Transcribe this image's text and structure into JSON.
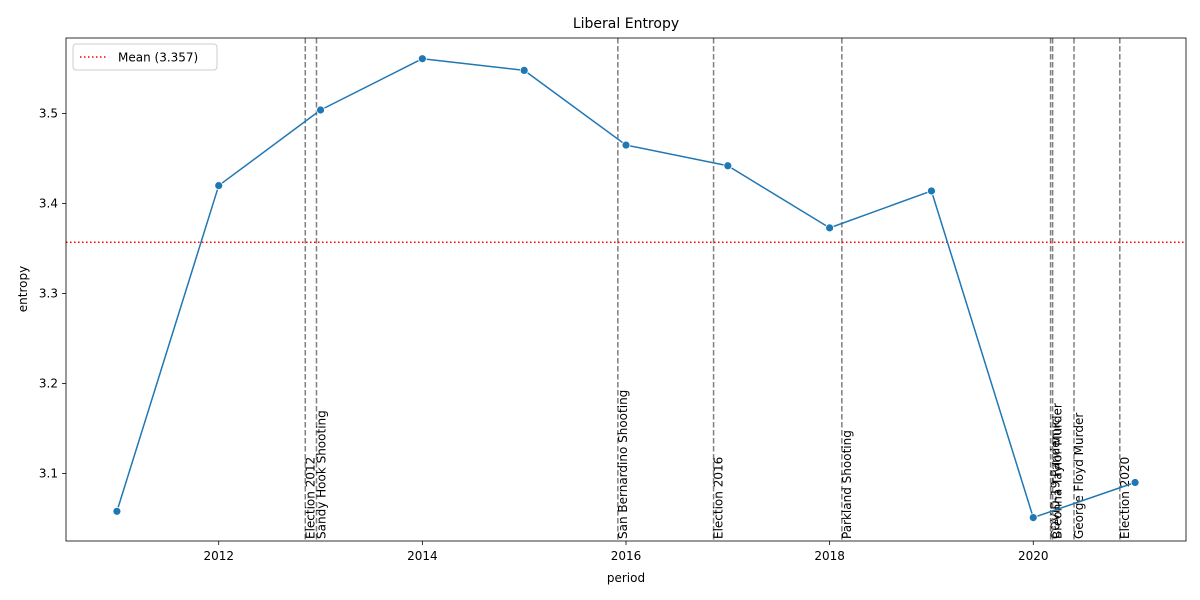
{
  "chart_data": {
    "type": "line",
    "title": "Liberal Entropy",
    "xlabel": "period",
    "ylabel": "entropy",
    "xlim": [
      2010.5,
      2021.5
    ],
    "ylim": [
      3.025,
      3.584
    ],
    "x_ticks": [
      2012,
      2014,
      2016,
      2018,
      2020
    ],
    "y_ticks": [
      3.1,
      3.2,
      3.3,
      3.4,
      3.5
    ],
    "grid": false,
    "legend_position": "top-left",
    "series": [
      {
        "color": "#1f77b4",
        "marker": "circle",
        "points": [
          {
            "x": 2011,
            "y": 3.058
          },
          {
            "x": 2012,
            "y": 3.42
          },
          {
            "x": 2013,
            "y": 3.504
          },
          {
            "x": 2014,
            "y": 3.561
          },
          {
            "x": 2015,
            "y": 3.548
          },
          {
            "x": 2016,
            "y": 3.465
          },
          {
            "x": 2017,
            "y": 3.442
          },
          {
            "x": 2018,
            "y": 3.373
          },
          {
            "x": 2019,
            "y": 3.414
          },
          {
            "x": 2020,
            "y": 3.051
          },
          {
            "x": 2021,
            "y": 3.09
          }
        ]
      }
    ],
    "mean_line": {
      "value": 3.357,
      "label": "Mean (3.357)",
      "color": "#ff0000",
      "style": "dotted"
    },
    "events": [
      {
        "label": "Election 2012",
        "x": 2012.85
      },
      {
        "label": "Sandy Hook Shooting",
        "x": 2012.96
      },
      {
        "label": "San Bernardino Shooting",
        "x": 2015.92
      },
      {
        "label": "Election 2016",
        "x": 2016.86
      },
      {
        "label": "Parkland Shooting",
        "x": 2018.12
      },
      {
        "label": "COVID-19 Pandemic",
        "x": 2020.17
      },
      {
        "label": "Breonna Taylor Murder",
        "x": 2020.19
      },
      {
        "label": "George Floyd Murder",
        "x": 2020.4
      },
      {
        "label": "Election 2020",
        "x": 2020.85
      }
    ],
    "event_line_color": "#808080"
  }
}
